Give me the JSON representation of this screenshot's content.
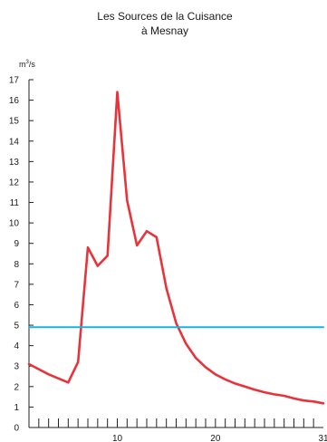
{
  "chart_data": {
    "type": "line",
    "title": "Les Sources de la Cuisance",
    "subtitle": "à Mesnay",
    "ylabel": "m³/s",
    "ylabel_parts": {
      "base": "m",
      "superscript": "3",
      "tail": "/s"
    },
    "xlabel": "",
    "xlim": [
      1,
      31
    ],
    "ylim": [
      0,
      17
    ],
    "grid": false,
    "y_ticks": [
      0,
      1,
      2,
      3,
      4,
      5,
      6,
      7,
      8,
      9,
      10,
      11,
      12,
      13,
      14,
      15,
      16,
      17
    ],
    "x_tick_labels": [
      10,
      20,
      31
    ],
    "x_minor_ticks": [
      2,
      3,
      4,
      5,
      6,
      7,
      8,
      9,
      10,
      11,
      12,
      13,
      14,
      15,
      16,
      17,
      18,
      19,
      20,
      21,
      22,
      23,
      24,
      25,
      26,
      27,
      28,
      29,
      30
    ],
    "series": [
      {
        "color": "#e8333a",
        "x": [
          1,
          3,
          5,
          6,
          7,
          8,
          9,
          10,
          11,
          12,
          13,
          14,
          15,
          16,
          17,
          18,
          19,
          20,
          21,
          22,
          23,
          24,
          25,
          26,
          27,
          28,
          29,
          30,
          31
        ],
        "values": [
          3.1,
          2.6,
          2.2,
          3.2,
          8.8,
          7.9,
          8.4,
          16.4,
          11.1,
          8.9,
          9.6,
          9.3,
          6.8,
          5.1,
          4.1,
          3.4,
          2.95,
          2.6,
          2.35,
          2.15,
          2.0,
          1.85,
          1.72,
          1.62,
          1.55,
          1.42,
          1.32,
          1.27,
          1.18
        ]
      },
      {
        "color": "#1ab2e0",
        "x": [
          1,
          31
        ],
        "values": [
          4.9,
          4.9
        ]
      }
    ]
  }
}
